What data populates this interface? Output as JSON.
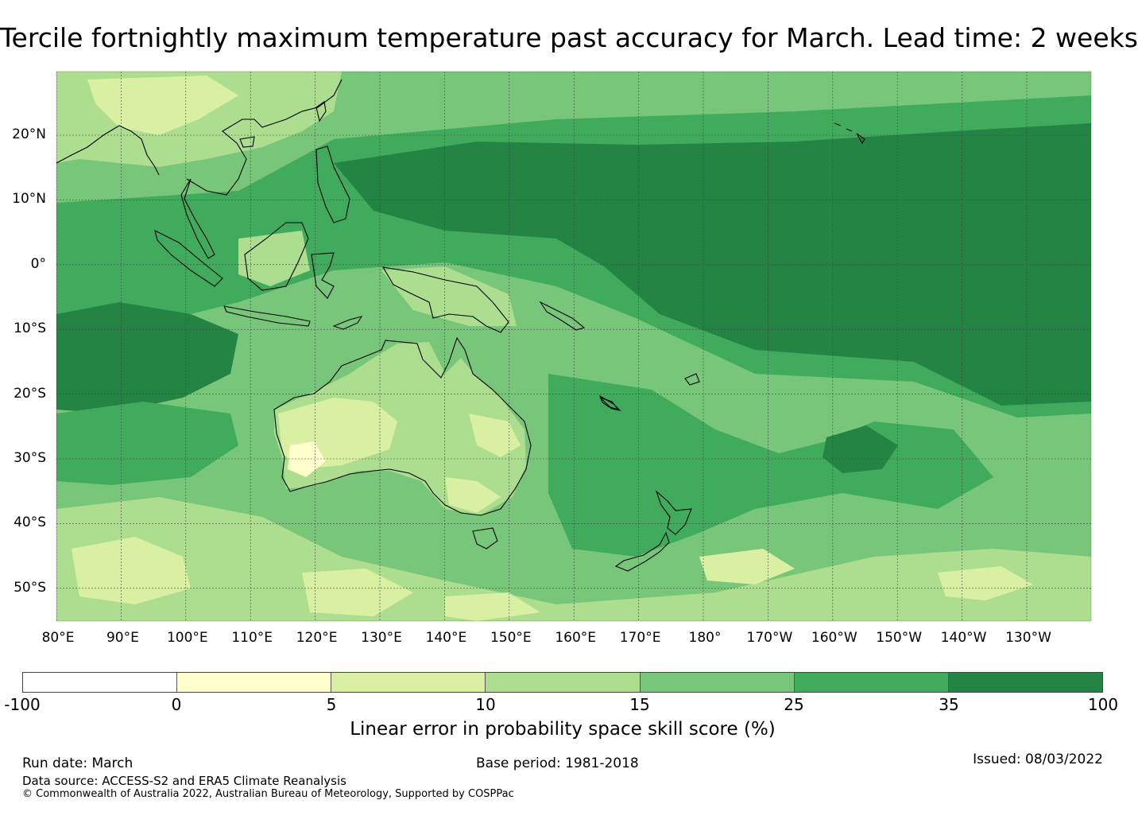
{
  "title": "Tercile fortnightly maximum temperature past accuracy for March. Lead time: 2 weeks",
  "map": {
    "lat_labels": [
      "20°N",
      "10°N",
      "0°",
      "10°S",
      "20°S",
      "30°S",
      "40°S",
      "50°S"
    ],
    "lon_labels": [
      "80°E",
      "90°E",
      "100°E",
      "110°E",
      "120°E",
      "130°E",
      "140°E",
      "150°E",
      "160°E",
      "170°E",
      "180°",
      "170°W",
      "160°W",
      "150°W",
      "140°W",
      "130°W"
    ]
  },
  "colorbar": {
    "ticks": [
      "-100",
      "0",
      "5",
      "10",
      "15",
      "25",
      "35",
      "100"
    ],
    "colors": [
      "#ffffff",
      "#ffffcc",
      "#d9f0a3",
      "#addd8e",
      "#78c679",
      "#41ab5d",
      "#238443"
    ],
    "label": "Linear error in probability space skill score (%)"
  },
  "footer": {
    "run_date": "Run date: March",
    "base_period": "Base period: 1981-2018",
    "issued": "Issued: 08/03/2022",
    "data_source": "Data source: ACCESS-S2 and ERA5 Climate Reanalysis",
    "copyright": "© Commonwealth of Australia 2022, Australian Bureau of Meteorology, Supported by COSPPac"
  }
}
